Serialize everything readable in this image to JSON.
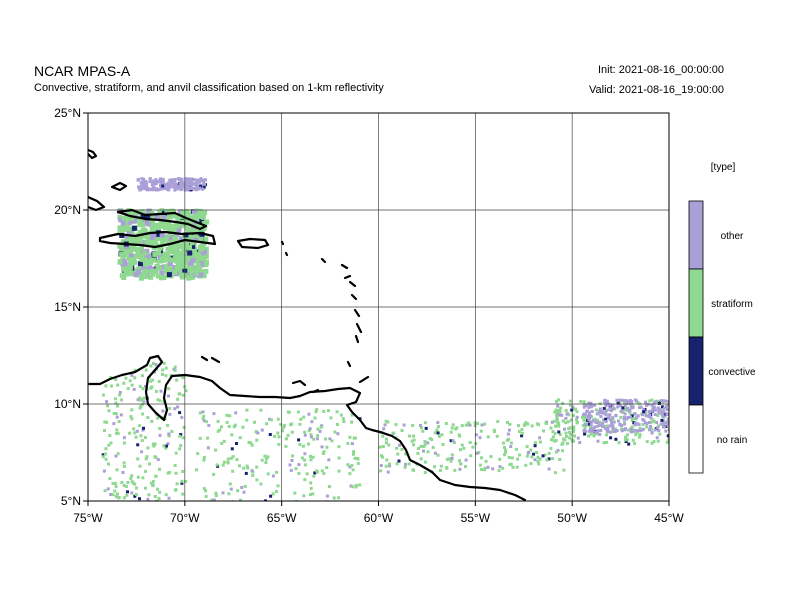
{
  "header": {
    "title": "NCAR MPAS-A",
    "subtitle": "Convective, stratiform, and anvil classification based on 1-km reflectivity",
    "init": "Init: 2021-08-16_00:00:00",
    "valid": "Valid: 2021-08-16_19:00:00"
  },
  "map_data": {
    "lon_range": [
      -75,
      -45
    ],
    "lat_range": [
      5,
      25
    ],
    "grid_lons": [
      -70,
      -65,
      -60,
      -55,
      -50
    ],
    "grid_lats": [
      10,
      15,
      20
    ],
    "x_ticks": [
      {
        "lon": -75,
        "label": "75°W"
      },
      {
        "lon": -70,
        "label": "70°W"
      },
      {
        "lon": -65,
        "label": "65°W"
      },
      {
        "lon": -60,
        "label": "60°W"
      },
      {
        "lon": -55,
        "label": "55°W"
      },
      {
        "lon": -50,
        "label": "50°W"
      },
      {
        "lon": -45,
        "label": "45°W"
      }
    ],
    "y_ticks": [
      {
        "lat": 25,
        "label": "25°N"
      },
      {
        "lat": 20,
        "label": "20°N"
      },
      {
        "lat": 15,
        "label": "15°N"
      },
      {
        "lat": 10,
        "label": "10°N"
      },
      {
        "lat": 5,
        "label": "5°N"
      }
    ],
    "colors": {
      "other": "#ab9fd8",
      "stratiform": "#8ed98f",
      "convective": "#16226e",
      "no_rain": "#ffffff"
    },
    "regions": [
      {
        "type": "stratiform",
        "lon": [
          -73.5,
          -69
        ],
        "lat": [
          16.6,
          20.1
        ]
      },
      {
        "type": "other",
        "lon": [
          -72.5,
          -69
        ],
        "lat": [
          21.1,
          21.7
        ]
      },
      {
        "type": "stratiform",
        "lon": [
          -74.3,
          -70
        ],
        "lat": [
          5,
          12.2
        ]
      },
      {
        "type": "stratiform",
        "lon": [
          -69.5,
          -61
        ],
        "lat": [
          5,
          9.8
        ]
      },
      {
        "type": "stratiform",
        "lon": [
          -60,
          -50.5
        ],
        "lat": [
          6.5,
          9.2
        ]
      },
      {
        "type": "stratiform",
        "lon": [
          -51,
          -45
        ],
        "lat": [
          8,
          10.3
        ]
      },
      {
        "type": "other",
        "lon": [
          -49.5,
          -45
        ],
        "lat": [
          8.6,
          10.3
        ]
      }
    ]
  },
  "legend": {
    "title": "[type]",
    "items": [
      {
        "key": "other",
        "label": "other"
      },
      {
        "key": "stratiform",
        "label": "stratiform"
      },
      {
        "key": "convective",
        "label": "convective"
      },
      {
        "key": "no_rain",
        "label": "no rain"
      }
    ]
  }
}
